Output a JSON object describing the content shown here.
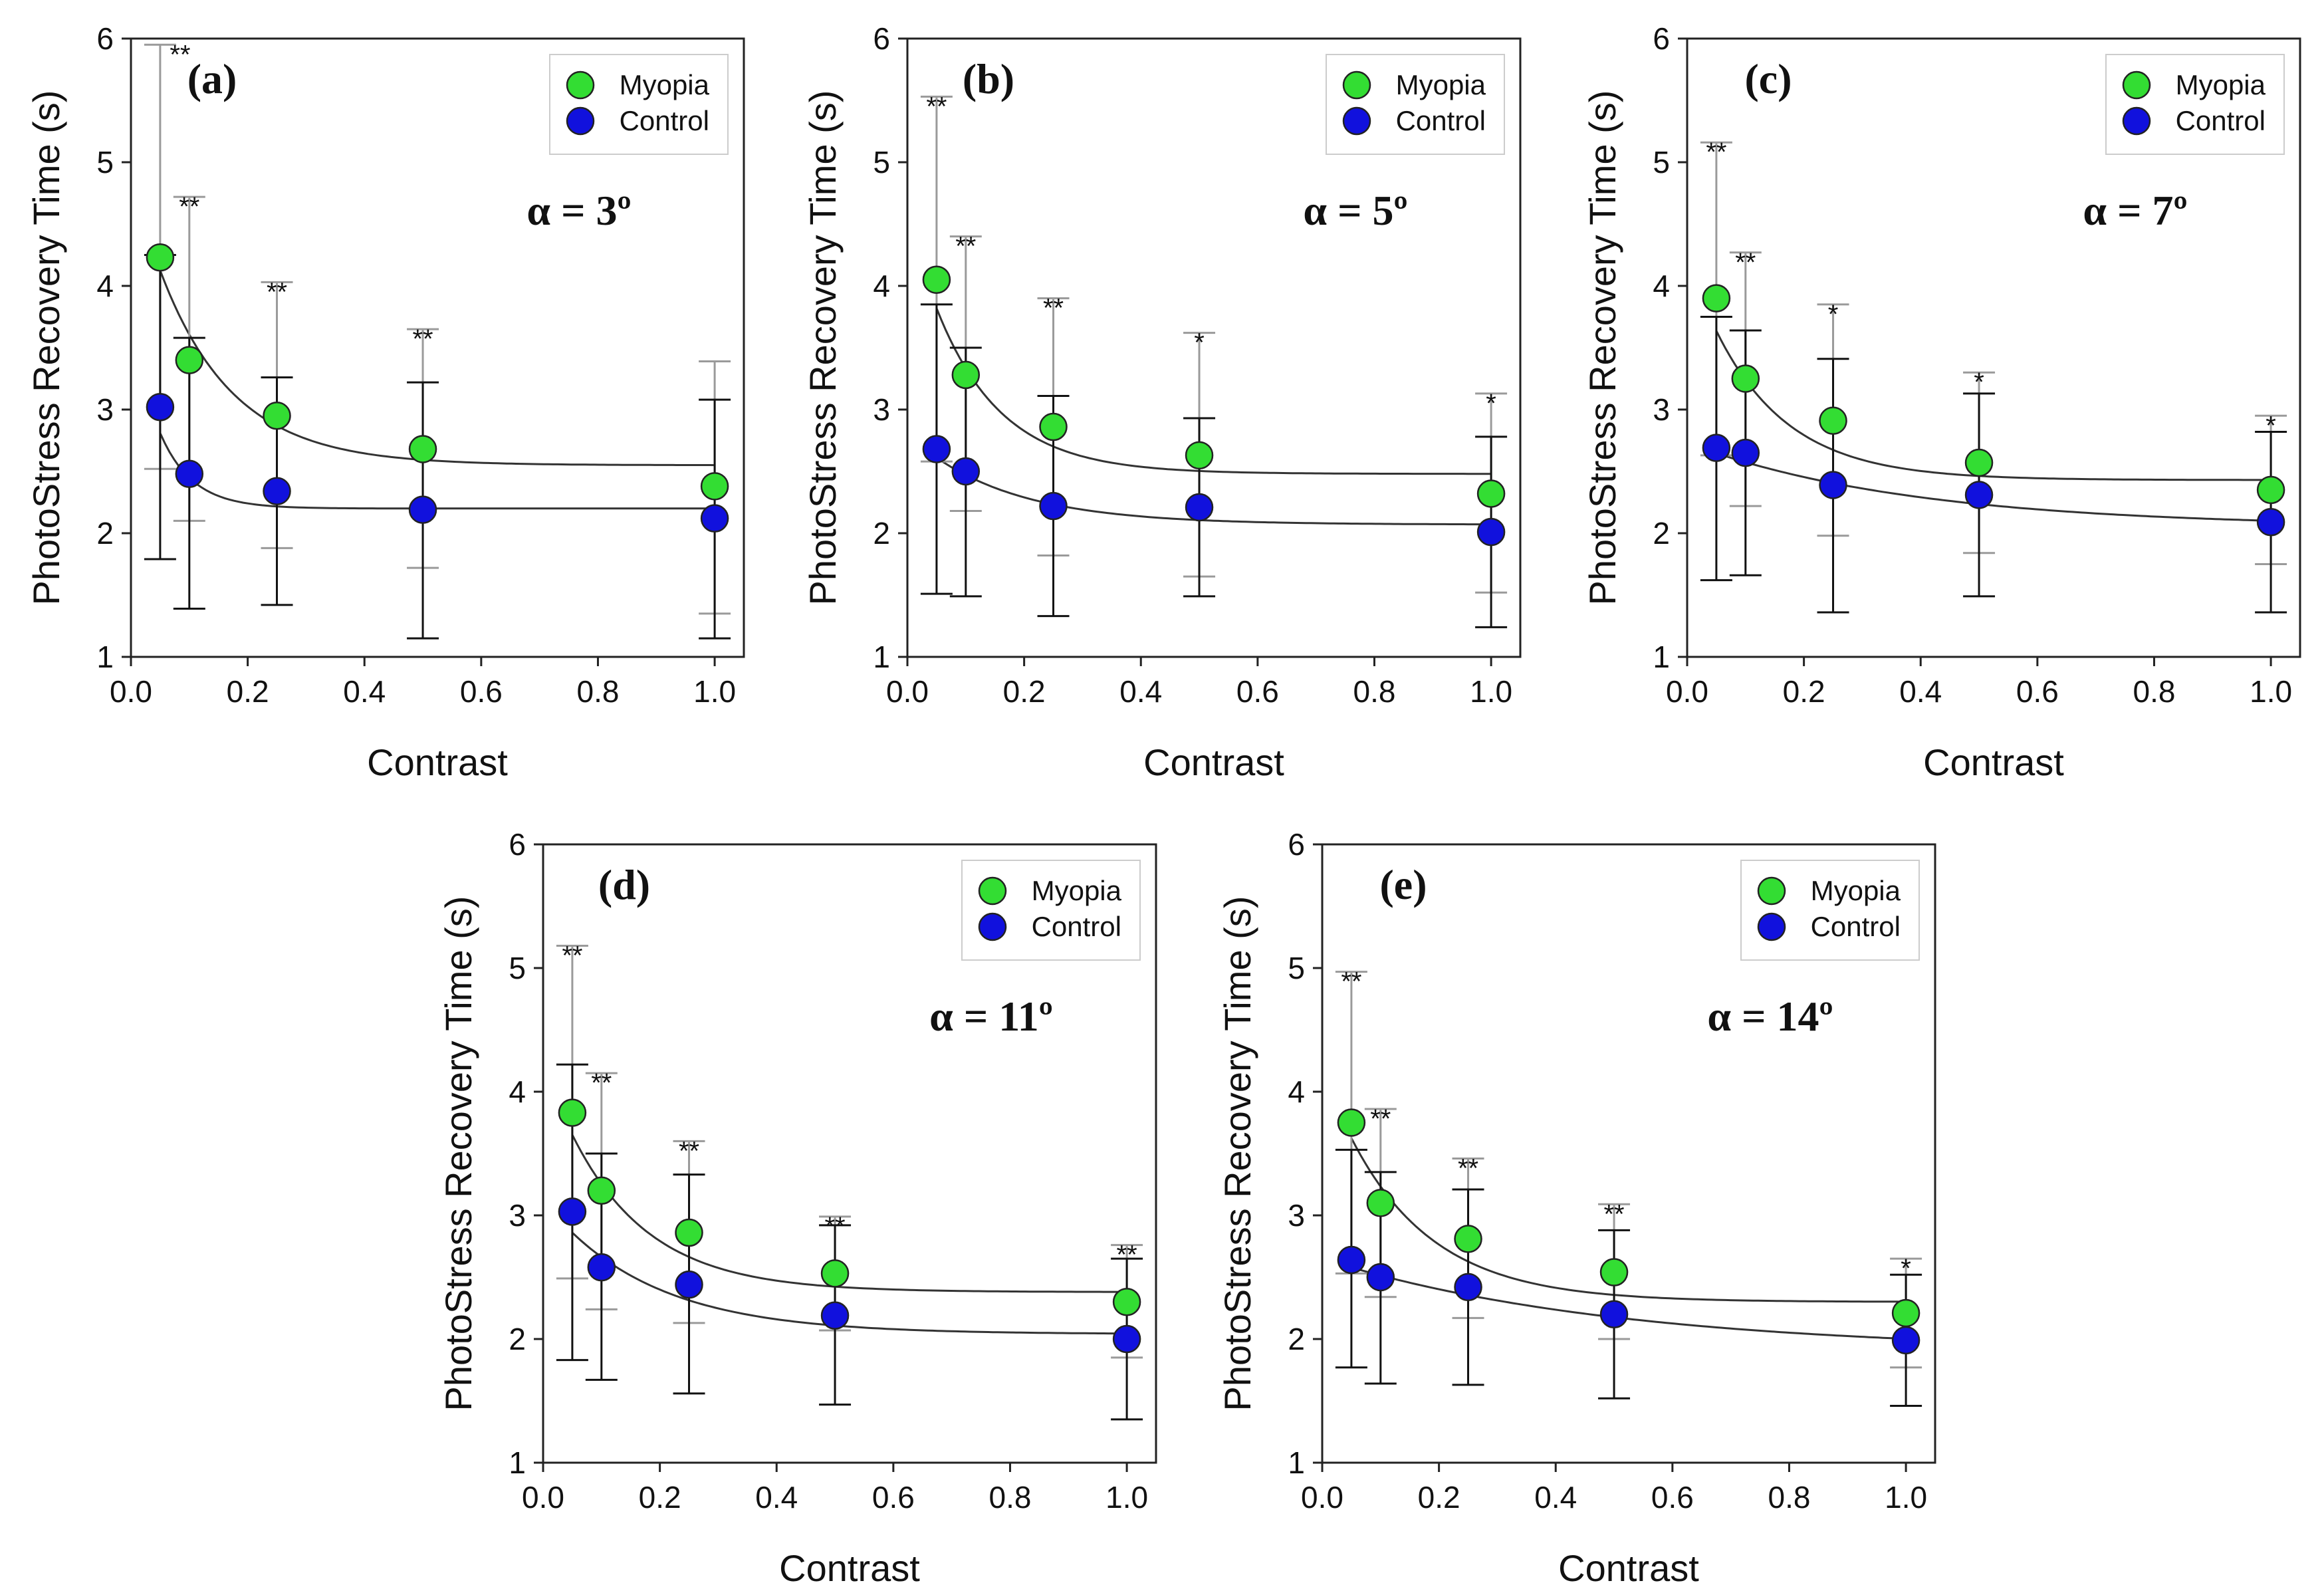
{
  "chart_data": [
    {
      "type": "scatter",
      "panel": "(a)",
      "alpha_label": "α = 3º",
      "xlabel": "Contrast",
      "ylabel": "PhotoStress Recovery Time (s)",
      "xlim": [
        0.0,
        1.05
      ],
      "ylim": [
        1,
        6
      ],
      "x_ticks": [
        "0.0",
        "0.2",
        "0.4",
        "0.6",
        "0.8",
        "1.0"
      ],
      "y_ticks": [
        "1",
        "2",
        "3",
        "4",
        "5",
        "6"
      ],
      "x": [
        0.05,
        0.1,
        0.25,
        0.5,
        1.0
      ],
      "significance": [
        "**",
        "**",
        "**",
        "**",
        ""
      ],
      "series": [
        {
          "name": "Myopia",
          "color": "#33dd33",
          "values": [
            4.23,
            3.4,
            2.95,
            2.68,
            2.38
          ],
          "err_low": [
            2.52,
            2.1,
            1.88,
            1.72,
            1.35
          ],
          "err_high": [
            5.95,
            4.72,
            4.03,
            3.65,
            3.39
          ],
          "fit": {
            "c": 2.55,
            "a": 2.35,
            "k": 8.0
          }
        },
        {
          "name": "Control",
          "color": "#1111dd",
          "values": [
            3.02,
            2.48,
            2.34,
            2.19,
            2.12
          ],
          "err_low": [
            1.79,
            1.39,
            1.42,
            1.15,
            1.15
          ],
          "err_high": [
            4.25,
            3.58,
            3.26,
            3.22,
            3.08
          ],
          "fit": {
            "c": 2.2,
            "a": 1.5,
            "k": 18.0
          }
        }
      ],
      "legend": [
        "Myopia",
        "Control"
      ]
    },
    {
      "type": "scatter",
      "panel": "(b)",
      "alpha_label": "α = 5º",
      "xlabel": "Contrast",
      "ylabel": "PhotoStress Recovery Time (s)",
      "xlim": [
        0.0,
        1.05
      ],
      "ylim": [
        1,
        6
      ],
      "x_ticks": [
        "0.0",
        "0.2",
        "0.4",
        "0.6",
        "0.8",
        "1.0"
      ],
      "y_ticks": [
        "1",
        "2",
        "3",
        "4",
        "5",
        "6"
      ],
      "x": [
        0.05,
        0.1,
        0.25,
        0.5,
        1.0
      ],
      "significance": [
        "**",
        "**",
        "**",
        "*",
        "*"
      ],
      "series": [
        {
          "name": "Myopia",
          "color": "#33dd33",
          "values": [
            4.05,
            3.28,
            2.86,
            2.63,
            2.32
          ],
          "err_low": [
            2.58,
            2.18,
            1.82,
            1.65,
            1.52
          ],
          "err_high": [
            5.53,
            4.4,
            3.9,
            3.62,
            3.13
          ],
          "fit": {
            "c": 2.48,
            "a": 2.1,
            "k": 9.0
          }
        },
        {
          "name": "Control",
          "color": "#1111dd",
          "values": [
            2.68,
            2.5,
            2.22,
            2.21,
            2.01
          ],
          "err_low": [
            1.51,
            1.49,
            1.33,
            1.49,
            1.24
          ],
          "err_high": [
            3.85,
            3.5,
            3.11,
            2.93,
            2.78
          ],
          "fit": {
            "c": 2.07,
            "a": 0.73,
            "k": 6.0
          }
        }
      ],
      "legend": [
        "Myopia",
        "Control"
      ]
    },
    {
      "type": "scatter",
      "panel": "(c)",
      "alpha_label": "α = 7º",
      "xlabel": "Contrast",
      "ylabel": "PhotoStress Recovery Time (s)",
      "xlim": [
        0.0,
        1.05
      ],
      "ylim": [
        1,
        6
      ],
      "x_ticks": [
        "0.0",
        "0.2",
        "0.4",
        "0.6",
        "0.8",
        "1.0"
      ],
      "y_ticks": [
        "1",
        "2",
        "3",
        "4",
        "5",
        "6"
      ],
      "x": [
        0.05,
        0.1,
        0.25,
        0.5,
        1.0
      ],
      "significance": [
        "**",
        "**",
        "*",
        "*",
        "*"
      ],
      "series": [
        {
          "name": "Myopia",
          "color": "#33dd33",
          "values": [
            3.9,
            3.25,
            2.91,
            2.57,
            2.35
          ],
          "err_low": [
            2.63,
            2.22,
            1.98,
            1.84,
            1.75
          ],
          "err_high": [
            5.16,
            4.27,
            3.85,
            3.3,
            2.95
          ],
          "fit": {
            "c": 2.43,
            "a": 1.8,
            "k": 8.0
          }
        },
        {
          "name": "Control",
          "color": "#1111dd",
          "values": [
            2.69,
            2.65,
            2.39,
            2.31,
            2.09
          ],
          "err_low": [
            1.62,
            1.66,
            1.36,
            1.49,
            1.36
          ],
          "err_high": [
            3.75,
            3.64,
            3.41,
            3.13,
            2.82
          ],
          "fit": {
            "c": 2.05,
            "a": 0.68,
            "k": 2.6
          }
        }
      ],
      "legend": [
        "Myopia",
        "Control"
      ]
    },
    {
      "type": "scatter",
      "panel": "(d)",
      "alpha_label": "α = 11º",
      "xlabel": "Contrast",
      "ylabel": "PhotoStress Recovery Time (s)",
      "xlim": [
        0.0,
        1.05
      ],
      "ylim": [
        1,
        6
      ],
      "x_ticks": [
        "0.0",
        "0.2",
        "0.4",
        "0.6",
        "0.8",
        "1.0"
      ],
      "y_ticks": [
        "1",
        "2",
        "3",
        "4",
        "5",
        "6"
      ],
      "x": [
        0.05,
        0.1,
        0.25,
        0.5,
        1.0
      ],
      "significance": [
        "**",
        "**",
        "**",
        "**",
        "**"
      ],
      "series": [
        {
          "name": "Myopia",
          "color": "#33dd33",
          "values": [
            3.83,
            3.2,
            2.86,
            2.53,
            2.3
          ],
          "err_low": [
            2.49,
            2.24,
            2.13,
            2.07,
            1.85
          ],
          "err_high": [
            5.18,
            4.15,
            3.6,
            2.99,
            2.76
          ],
          "fit": {
            "c": 2.38,
            "a": 1.85,
            "k": 7.5
          }
        },
        {
          "name": "Control",
          "color": "#1111dd",
          "values": [
            3.03,
            2.58,
            2.44,
            2.19,
            2.0
          ],
          "err_low": [
            1.83,
            1.67,
            1.56,
            1.47,
            1.35
          ],
          "err_high": [
            4.22,
            3.5,
            3.33,
            2.92,
            2.65
          ],
          "fit": {
            "c": 2.04,
            "a": 1.08,
            "k": 5.5
          }
        }
      ],
      "legend": [
        "Myopia",
        "Control"
      ]
    },
    {
      "type": "scatter",
      "panel": "(e)",
      "alpha_label": "α = 14º",
      "xlabel": "Contrast",
      "ylabel": "PhotoStress Recovery Time (s)",
      "xlim": [
        0.0,
        1.05
      ],
      "ylim": [
        1,
        6
      ],
      "x_ticks": [
        "0.0",
        "0.2",
        "0.4",
        "0.6",
        "0.8",
        "1.0"
      ],
      "y_ticks": [
        "1",
        "2",
        "3",
        "4",
        "5",
        "6"
      ],
      "x": [
        0.05,
        0.1,
        0.25,
        0.5,
        1.0
      ],
      "significance": [
        "**",
        "**",
        "**",
        "**",
        "*"
      ],
      "series": [
        {
          "name": "Myopia",
          "color": "#33dd33",
          "values": [
            3.75,
            3.1,
            2.81,
            2.54,
            2.21
          ],
          "err_low": [
            2.53,
            2.34,
            2.17,
            2.0,
            1.77
          ],
          "err_high": [
            4.97,
            3.86,
            3.46,
            3.09,
            2.65
          ],
          "fit": {
            "c": 2.3,
            "a": 1.88,
            "k": 7.0
          }
        },
        {
          "name": "Control",
          "color": "#1111dd",
          "values": [
            2.64,
            2.5,
            2.42,
            2.2,
            1.99
          ],
          "err_low": [
            1.77,
            1.64,
            1.63,
            1.52,
            1.46
          ],
          "err_high": [
            3.53,
            3.35,
            3.21,
            2.88,
            2.52
          ],
          "fit": {
            "c": 1.9,
            "a": 0.75,
            "k": 2.0
          }
        }
      ],
      "legend": [
        "Myopia",
        "Control"
      ]
    }
  ]
}
